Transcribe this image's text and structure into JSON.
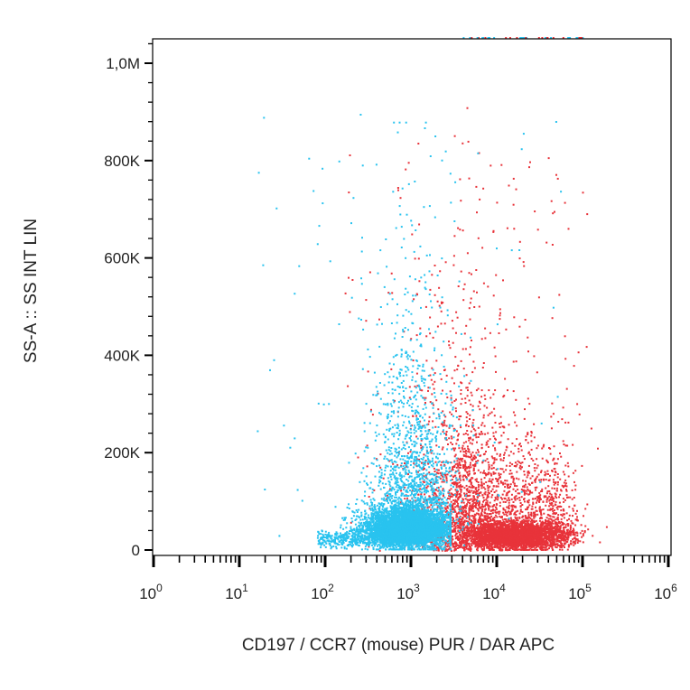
{
  "chart_data": {
    "type": "scatter",
    "title": "",
    "xlabel": "CD197 / CCR7 (mouse) PUR / DAR APC",
    "ylabel": "SS-A :: SS INT LIN",
    "x_scale": "log",
    "xlim": [
      1,
      1000000
    ],
    "xticks": [
      {
        "base": "10",
        "exp": "0",
        "value": 1
      },
      {
        "base": "10",
        "exp": "1",
        "value": 10
      },
      {
        "base": "10",
        "exp": "2",
        "value": 100
      },
      {
        "base": "10",
        "exp": "3",
        "value": 1000
      },
      {
        "base": "10",
        "exp": "4",
        "value": 10000
      },
      {
        "base": "10",
        "exp": "5",
        "value": 100000
      },
      {
        "base": "10",
        "exp": "6",
        "value": 1000000
      }
    ],
    "y_scale": "linear",
    "ylim": [
      -5000,
      1050000
    ],
    "yticks": [
      {
        "label": "0",
        "value": 0
      },
      {
        "label": "200K",
        "value": 200000
      },
      {
        "label": "400K",
        "value": 400000
      },
      {
        "label": "600K",
        "value": 600000
      },
      {
        "label": "800K",
        "value": 800000
      },
      {
        "label": "1,0M",
        "value": 1000000
      }
    ],
    "grid": false,
    "legend": "none",
    "series": [
      {
        "color": "#e8333a",
        "cluster_center": [
          20000,
          30000
        ],
        "approx_x_range": [
          2500,
          60000
        ],
        "approx_y_range": [
          0,
          1000000
        ]
      },
      {
        "color": "#29c3ef",
        "cluster_center": [
          800,
          30000
        ],
        "approx_x_range": [
          15,
          100000
        ],
        "approx_y_range": [
          0,
          1000000
        ]
      }
    ]
  }
}
